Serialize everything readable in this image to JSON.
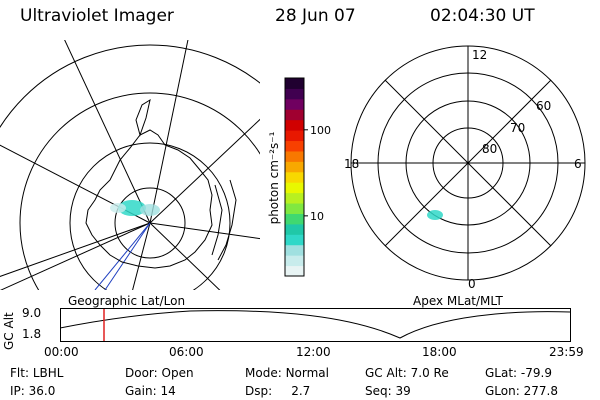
{
  "header": {
    "title": "Ultraviolet Imager",
    "date": "28 Jun 07",
    "time": "02:04:30 UT"
  },
  "colorbar": {
    "unit_label": "photon cm⁻²s⁻¹",
    "ticks": [
      {
        "label": "100",
        "value": 100
      },
      {
        "label": "10",
        "value": 10
      }
    ],
    "colors": [
      "#e8f4f4",
      "#c8ecec",
      "#a0e0e0",
      "#30d8c8",
      "#20c8a8",
      "#40d870",
      "#80e840",
      "#b8f020",
      "#e8f800",
      "#f8d800",
      "#f8a800",
      "#f87800",
      "#f84000",
      "#e81800",
      "#d00000",
      "#a00030",
      "#700060",
      "#400050",
      "#200030"
    ]
  },
  "geo_panel": {
    "label": "Geographic Lat/Lon"
  },
  "polar_panel": {
    "label": "Apex  MLat/MLT",
    "mlt_labels": [
      {
        "label": "12",
        "pos": "top"
      },
      {
        "label": "18",
        "pos": "left"
      },
      {
        "label": "6",
        "pos": "right"
      },
      {
        "label": "0",
        "pos": "bottom"
      }
    ],
    "lat_labels": [
      "60",
      "70",
      "80"
    ]
  },
  "alt_plot": {
    "ylabel": "GC Alt",
    "yticks": [
      "9.0",
      "1.8"
    ],
    "xticks": [
      "00:00",
      "06:00",
      "12:00",
      "18:00",
      "23:59"
    ],
    "marker_time": "02:04:30"
  },
  "footer": {
    "row1": [
      {
        "key": "Flt:",
        "value": "LBHL"
      },
      {
        "key": "Door:",
        "value": "Open"
      },
      {
        "key": "Mode:",
        "value": "Normal"
      },
      {
        "key": "GC Alt:",
        "value": "7.0 Re"
      },
      {
        "key": "GLat:",
        "value": "-79.9"
      }
    ],
    "row2": [
      {
        "key": "IP:",
        "value": "36.0"
      },
      {
        "key": "Gain:",
        "value": "14"
      },
      {
        "key": "Dsp:",
        "value": "2.7"
      },
      {
        "key": "Seq:",
        "value": "39"
      },
      {
        "key": "GLon:",
        "value": "277.8"
      }
    ]
  }
}
